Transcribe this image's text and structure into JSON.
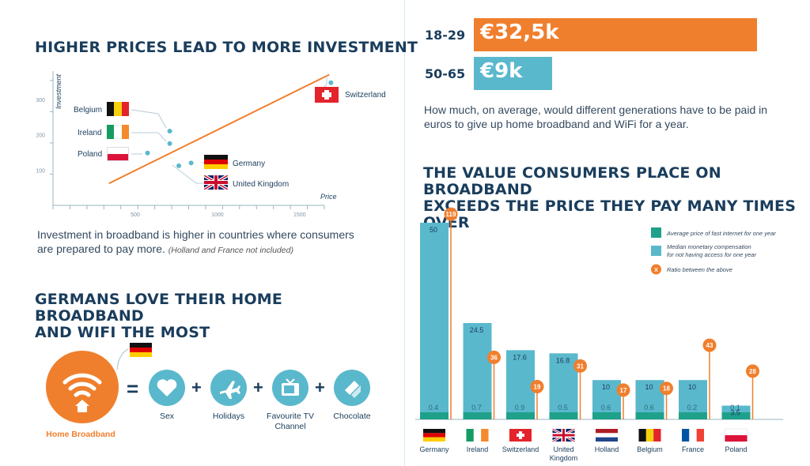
{
  "colors": {
    "navy": "#1a3d5c",
    "orange": "#f07f2d",
    "teal": "#5ab8cc",
    "dark_teal": "#1fa08a",
    "light_blue": "#d6e8ef"
  },
  "section1": {
    "title": "HIGHER PRICES LEAD TO MORE INVESTMENT",
    "caption": "Investment in broadband is higher in countries where consumers are prepared to pay more.",
    "caption_note": "(Holland and France not included)"
  },
  "section2": {
    "title_line1": "GERMANS LOVE THEIR HOME BROADBAND",
    "title_line2": "AND WIFI THE MOST",
    "main_label": "Home Broadband",
    "items": [
      {
        "label": "Sex",
        "icon": "heart-icon"
      },
      {
        "label": "Holidays",
        "icon": "plane-icon"
      },
      {
        "label": "Favourite TV Channel",
        "icon": "tv-icon"
      },
      {
        "label": "Chocolate",
        "icon": "chocolate-icon"
      }
    ],
    "equals": "=",
    "plus": "+"
  },
  "ages": {
    "rows": [
      {
        "label": "18-29",
        "value_text": "€32,5k",
        "value": 32.5,
        "color": "#f07f2d"
      },
      {
        "label": "50-65",
        "value_text": "€9k",
        "value": 9,
        "color": "#5ab8cc"
      }
    ],
    "caption": "How much, on average, would different generations have to be paid in euros to give up home broadband and WiFi for a year."
  },
  "section3": {
    "title_line1": "THE VALUE CONSUMERS PLACE ON BROADBAND",
    "title_line2": "EXCEEDS THE PRICE THEY PAY MANY TIMES OVER"
  },
  "chart_data": [
    {
      "type": "scatter",
      "xlabel": "Price",
      "ylabel": "Investment",
      "x_ticks": [
        "500",
        "1000",
        "1500"
      ],
      "y_ticks": [
        "300",
        "200",
        "100"
      ],
      "xlim": [
        0,
        1650
      ],
      "ylim": [
        0,
        380
      ],
      "points": [
        {
          "label": "Belgium",
          "x": 710,
          "y": 210
        },
        {
          "label": "Ireland",
          "x": 710,
          "y": 175
        },
        {
          "label": "Poland",
          "x": 575,
          "y": 148
        },
        {
          "label": "Germany",
          "x": 840,
          "y": 120
        },
        {
          "label": "United Kingdom",
          "x": 765,
          "y": 112
        },
        {
          "label": "Switzerland",
          "x": 1690,
          "y": 347
        }
      ],
      "trend_line": {
        "x": [
          340,
          1680
        ],
        "y": [
          62,
          370
        ]
      }
    },
    {
      "type": "bar",
      "categories": [
        "Germany",
        "Ireland",
        "Switzerland",
        "United Kingdom",
        "Holland",
        "Belgium",
        "France",
        "Poland"
      ],
      "series": [
        {
          "name": "Average price of fast internet for one year",
          "values": [
            0.4,
            0.7,
            0.9,
            0.5,
            0.6,
            0.6,
            0.2,
            0.1
          ]
        },
        {
          "name": "Median monetary compensation for not having access for one year",
          "values": [
            50,
            24.5,
            17.6,
            16.8,
            10,
            10,
            10,
            3.5
          ]
        },
        {
          "name": "Ratio between the above",
          "values": [
            119,
            36,
            19,
            31,
            17,
            18,
            43,
            28
          ]
        }
      ],
      "legend_ratio_marker": "X",
      "legend_placement": "top-right"
    }
  ]
}
